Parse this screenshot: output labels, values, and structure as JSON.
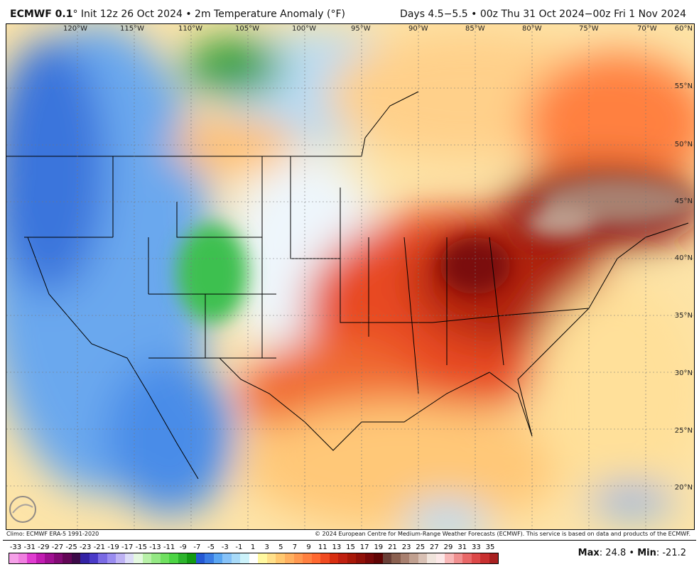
{
  "header": {
    "model": "ECMWF 0.1",
    "title_rest": "° Init 12z 26 Oct 2024 • 2m Temperature Anomaly (°F)",
    "valid": "Days 4.5−5.5 • 00z Thu 31 Oct 2024−00z Fri 1 Nov 2024"
  },
  "map": {
    "lon_labels": [
      "120°W",
      "115°W",
      "110°W",
      "105°W",
      "100°W",
      "95°W",
      "90°W",
      "85°W",
      "80°W",
      "75°W",
      "70°W"
    ],
    "lat_labels": [
      "60°N",
      "55°N",
      "50°N",
      "45°N",
      "40°N",
      "35°N",
      "30°N",
      "25°N",
      "20°N"
    ],
    "logo": "WeatherBELL Analytics LLC"
  },
  "footer": {
    "climo": "Climo: ECMWF ERA-5 1991-2020",
    "copyright": "© 2024 European Centre for Medium-Range Weather Forecasts (ECMWF). This service is based on data and products of the ECMWF."
  },
  "colorbar": {
    "ticks": [
      "-33",
      "-31",
      "-29",
      "-27",
      "-25",
      "-23",
      "-21",
      "-19",
      "-17",
      "-15",
      "-13",
      "-11",
      "-9",
      "-7",
      "-5",
      "-3",
      "-1",
      "1",
      "3",
      "5",
      "7",
      "9",
      "11",
      "13",
      "15",
      "17",
      "19",
      "21",
      "23",
      "25",
      "27",
      "29",
      "31",
      "33",
      "35"
    ],
    "colors": [
      "#f5a0e8",
      "#f07ee0",
      "#e03cd0",
      "#c21cb2",
      "#a01092",
      "#820a74",
      "#620656",
      "#3c0a48",
      "#3322a4",
      "#4a3ac8",
      "#7a6ae4",
      "#9a8cf0",
      "#beb2f4",
      "#dcdcf8",
      "#e4f8e0",
      "#b8f0a8",
      "#94e884",
      "#70e060",
      "#4cd444",
      "#2cb42c",
      "#129a12",
      "#2458d4",
      "#3a7ce4",
      "#5aa6f2",
      "#86c2f8",
      "#a8daf8",
      "#ccf2fa",
      "#ffffff",
      "#fff8a0",
      "#ffe08a",
      "#ffc870",
      "#ffb060",
      "#ff9850",
      "#ff8040",
      "#ff6830",
      "#f04a20",
      "#d82e10",
      "#c02010",
      "#a81808",
      "#901008",
      "#780808",
      "#600404",
      "#6a4038",
      "#8a6050",
      "#a88070",
      "#c0a090",
      "#d8c0b4",
      "#f0e4dc",
      "#fce8e8",
      "#f8b8b8",
      "#f09090",
      "#e86868",
      "#dc4848",
      "#c83030",
      "#a82020"
    ]
  },
  "stats": {
    "max_label": "Max",
    "max": "24.8",
    "min_label": "Min",
    "min": "-21.2",
    "sep": " • "
  }
}
